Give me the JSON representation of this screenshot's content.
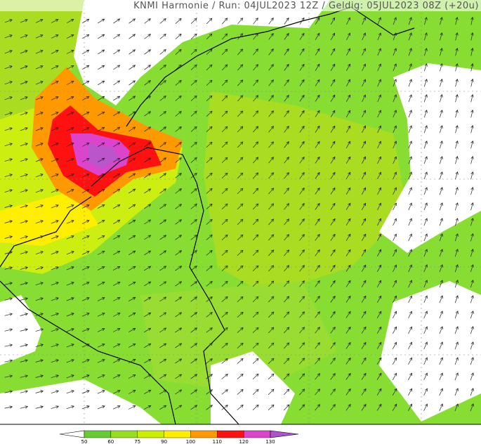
{
  "header": {
    "title": "KNMI Harmonie / Run: 04JUL2023 12Z / Geldig: 05JUL2023 08Z (+20u)"
  },
  "legend": {
    "levels": [
      50,
      60,
      75,
      90,
      100,
      110,
      120,
      130
    ],
    "colors": [
      "#ffffff",
      "#66cc33",
      "#99dd22",
      "#ccee00",
      "#ffee00",
      "#ff9900",
      "#ff1111",
      "#dd44cc",
      "#aa55cc"
    ]
  }
}
